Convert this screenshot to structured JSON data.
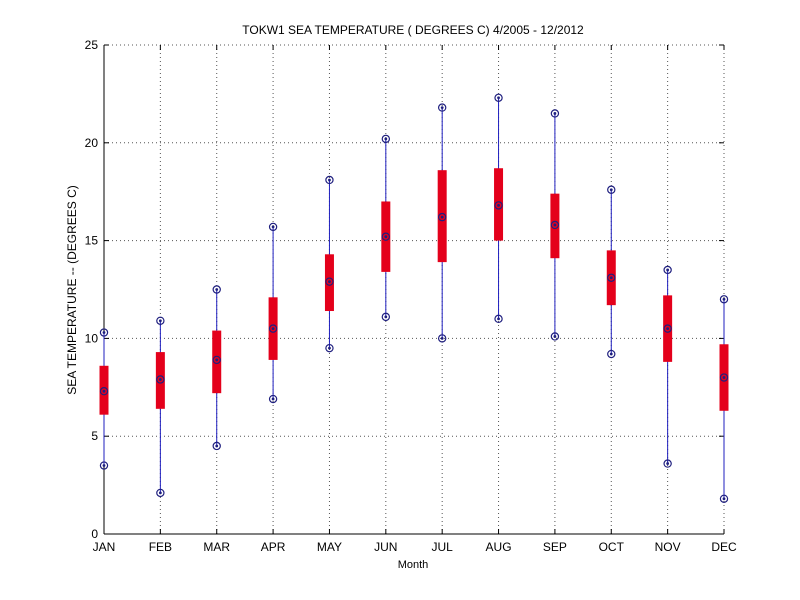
{
  "chart_data": {
    "type": "box",
    "title": "TOKW1  SEA TEMPERATURE ( DEGREES C) 4/2005 - 12/2012",
    "xlabel": "Month",
    "ylabel": "SEA TEMPERATURE -- (DEGREES C)",
    "categories": [
      "JAN",
      "FEB",
      "MAR",
      "APR",
      "MAY",
      "JUN",
      "JUL",
      "AUG",
      "SEP",
      "OCT",
      "NOV",
      "DEC"
    ],
    "ylim": [
      0,
      25
    ],
    "yticks": [
      "0",
      "5",
      "10",
      "15",
      "20",
      "25"
    ],
    "grid": true,
    "series": [
      {
        "min": [
          3.5,
          2.1,
          4.5,
          6.9,
          9.5,
          11.1,
          10.0,
          11.0,
          10.1,
          9.2,
          3.6,
          1.8
        ],
        "q1": [
          6.1,
          6.4,
          7.2,
          8.9,
          11.4,
          13.4,
          13.9,
          15.0,
          14.1,
          11.7,
          8.8,
          6.3
        ],
        "median": [
          7.3,
          7.9,
          8.9,
          10.5,
          12.9,
          15.2,
          16.2,
          16.8,
          15.8,
          13.1,
          10.5,
          8.0
        ],
        "q3": [
          8.6,
          9.3,
          10.4,
          12.1,
          14.3,
          17.0,
          18.6,
          18.7,
          17.4,
          14.5,
          12.2,
          9.7
        ],
        "max": [
          10.3,
          10.9,
          12.5,
          15.7,
          18.1,
          20.2,
          21.8,
          22.3,
          21.5,
          17.6,
          13.5,
          12.0
        ]
      }
    ],
    "colors": {
      "box": "#e4001b",
      "whisker": "#1f1fbf",
      "marker": "#1f1f7f",
      "grid": "#555555",
      "axis": "#000000"
    }
  }
}
